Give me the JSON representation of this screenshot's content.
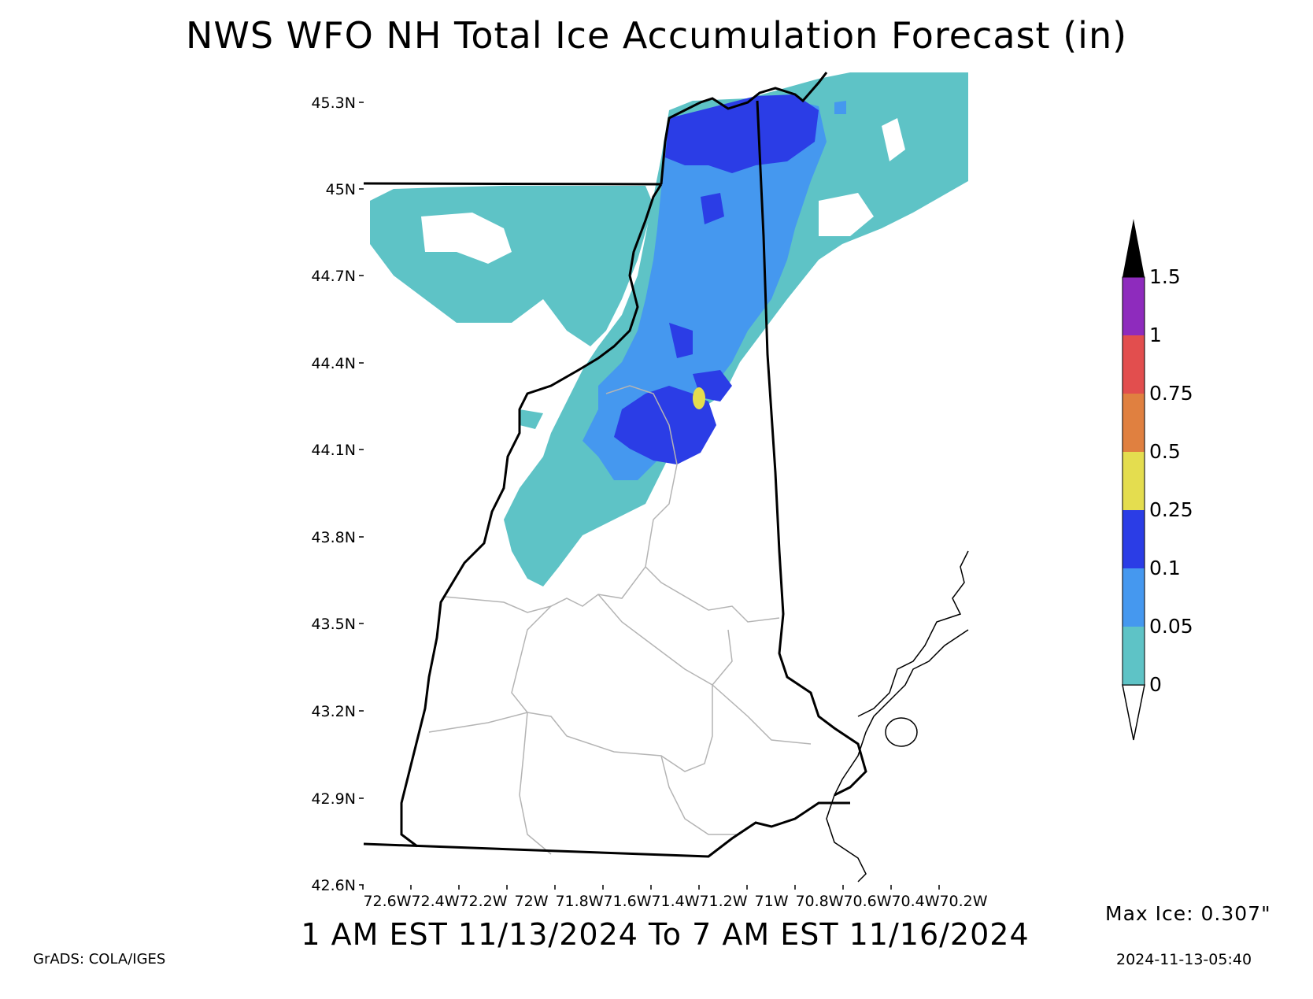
{
  "title": "NWS WFO NH Total Ice Accumulation Forecast (in)",
  "subtitle": "1 AM EST 11/13/2024 To 7 AM EST 11/16/2024",
  "credit": "GrADS: COLA/IGES",
  "max_ice": "Max Ice: 0.307\"",
  "timestamp": "2024-11-13-05:40",
  "lat_ticks": [
    "45.3N",
    "45N",
    "44.7N",
    "44.4N",
    "44.1N",
    "43.8N",
    "43.5N",
    "43.2N",
    "42.9N",
    "42.6N"
  ],
  "lon_ticks": [
    "72.6W",
    "72.4W",
    "72.2W",
    "72W",
    "71.8W",
    "71.6W",
    "71.4W",
    "71.2W",
    "71W",
    "70.8W",
    "70.6W",
    "70.4W",
    "70.2W"
  ],
  "colorbar": {
    "labels": [
      "0",
      "0.05",
      "0.1",
      "0.25",
      "0.5",
      "0.75",
      "1",
      "1.5"
    ],
    "colors": [
      "#5ec3c6",
      "#4598ef",
      "#2b3de6",
      "#e4dd4f",
      "#e08040",
      "#e24e4e",
      "#8e2bbd",
      "#000000"
    ]
  }
}
